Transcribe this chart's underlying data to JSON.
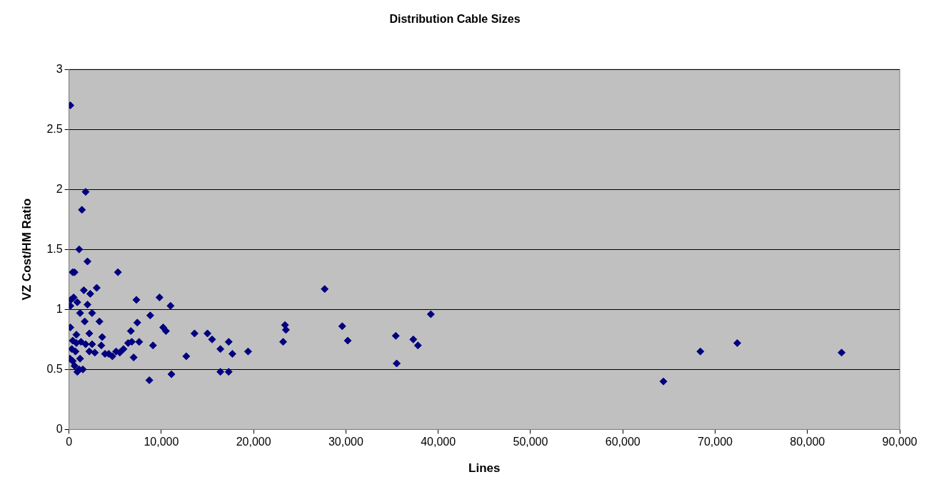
{
  "chart_data": {
    "type": "scatter",
    "title": "Distribution Cable Sizes",
    "xlabel": "Lines",
    "ylabel": "VZ Cost/HM Ratio",
    "x": [
      150,
      1800,
      1400,
      1100,
      2000,
      400,
      600,
      5300,
      3000,
      1600,
      2300,
      7300,
      9800,
      500,
      200,
      900,
      150,
      2000,
      11000,
      27700,
      39200,
      8800,
      2500,
      1200,
      1700,
      3300,
      7400,
      10200,
      10500,
      150,
      23400,
      23500,
      29600,
      13600,
      15000,
      2200,
      6700,
      3600,
      800,
      35400,
      15500,
      37300,
      37800,
      30200,
      23200,
      17300,
      7600,
      6800,
      6400,
      400,
      800,
      1300,
      1800,
      2500,
      3500,
      9100,
      64400,
      68400,
      72400,
      83700,
      7000,
      4700,
      5100,
      5500,
      4300,
      3900,
      2800,
      2200,
      5900,
      16400,
      17700,
      19400,
      12700,
      100,
      400,
      1200,
      600,
      1100,
      900,
      1500,
      11100,
      16400,
      17300,
      8700,
      35500,
      700,
      300
    ],
    "series": [
      {
        "color": "#000080",
        "values": [
          2.7,
          1.98,
          1.83,
          1.5,
          1.4,
          1.31,
          1.31,
          1.31,
          1.18,
          1.16,
          1.13,
          1.08,
          1.1,
          1.1,
          1.08,
          1.06,
          1.03,
          1.04,
          1.03,
          1.17,
          0.96,
          0.95,
          0.97,
          0.97,
          0.9,
          0.9,
          0.89,
          0.85,
          0.82,
          0.85,
          0.87,
          0.83,
          0.86,
          0.8,
          0.8,
          0.8,
          0.82,
          0.77,
          0.79,
          0.78,
          0.75,
          0.75,
          0.7,
          0.74,
          0.73,
          0.73,
          0.73,
          0.73,
          0.72,
          0.74,
          0.72,
          0.73,
          0.71,
          0.71,
          0.7,
          0.7,
          0.4,
          0.65,
          0.72,
          0.64,
          0.6,
          0.61,
          0.65,
          0.64,
          0.63,
          0.63,
          0.64,
          0.65,
          0.67,
          0.67,
          0.63,
          0.65,
          0.61,
          0.59,
          0.57,
          0.59,
          0.53,
          0.5,
          0.48,
          0.5,
          0.46,
          0.48,
          0.48,
          0.41,
          0.55,
          0.65,
          0.67
        ]
      }
    ],
    "xlim": [
      0,
      90000
    ],
    "xticks": [
      0,
      {
        "value": 10000,
        "label": "10,000"
      },
      {
        "value": 20000,
        "label": "20,000"
      },
      {
        "value": 30000,
        "label": "30,000"
      },
      {
        "value": 40000,
        "label": "40,000"
      },
      {
        "value": 50000,
        "label": "50,000"
      },
      {
        "value": 60000,
        "label": "60,000"
      },
      {
        "value": 70000,
        "label": "70,000"
      },
      {
        "value": 80000,
        "label": "80,000"
      },
      {
        "value": 90000,
        "label": "90,000"
      }
    ],
    "ylim": [
      0,
      3
    ],
    "yticks": [
      0,
      0.5,
      1,
      1.5,
      2,
      2.5,
      3
    ],
    "grid": "y",
    "marker": "diamond",
    "legend": false
  }
}
